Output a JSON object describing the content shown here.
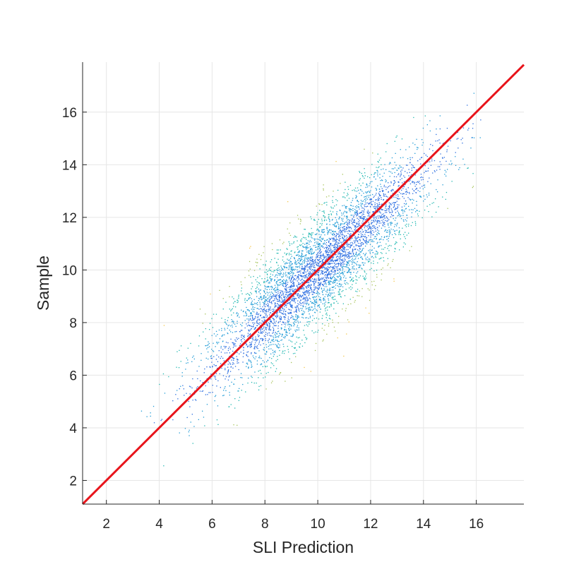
{
  "chart_data": {
    "type": "scatter",
    "xlabel": "SLI Prediction",
    "ylabel": "Sample",
    "xlim": [
      1.1,
      17.8
    ],
    "ylim": [
      1.1,
      17.9
    ],
    "xticks": [
      2,
      4,
      6,
      8,
      10,
      12,
      14,
      16
    ],
    "yticks": [
      2,
      4,
      6,
      8,
      10,
      12,
      14,
      16
    ],
    "grid": true,
    "reference_line": {
      "type": "identity",
      "from": [
        1.1,
        1.1
      ],
      "to": [
        17.8,
        17.8
      ],
      "color": "#e8141b"
    },
    "point_color_scale": [
      "#2a6de0",
      "#1f9bd6",
      "#1fb7b0",
      "#a6c35a",
      "#f3c64a"
    ],
    "points": {
      "distribution": "bivariate-normal",
      "count": 5000,
      "center": [
        10,
        10
      ],
      "x_range": [
        3.2,
        16.4
      ],
      "y_range": [
        1.2,
        17.9
      ],
      "spread_along_identity": 2.0,
      "spread_across_identity": 0.75
    }
  }
}
